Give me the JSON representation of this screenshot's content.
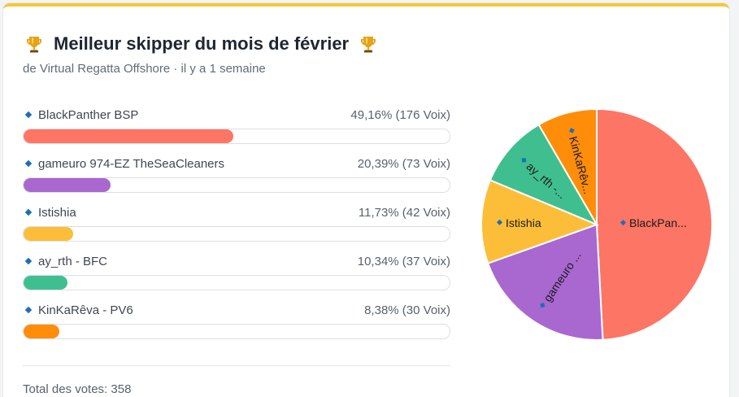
{
  "poll": {
    "title": "Meilleur skipper du mois de février",
    "subtitle": "de Virtual Regatta Offshore · il y a 1 semaine",
    "total": "Total des votes: 358",
    "title_icon": "trophy-icon",
    "accent_color": "#f6c736"
  },
  "options": [
    {
      "name": "BlackPanther BSP",
      "result": "49,16% (176 Voix)",
      "percent": 49.16,
      "votes": 176,
      "color": "#fd7564",
      "pie_label": "BlackPan..."
    },
    {
      "name": "gameuro 974-EZ TheSeaCleaners",
      "result": "20,39% (73 Voix)",
      "percent": 20.39,
      "votes": 73,
      "color": "#a967d0",
      "pie_label": "gameuro ..."
    },
    {
      "name": "Istishia",
      "result": "11,73% (42 Voix)",
      "percent": 11.73,
      "votes": 42,
      "color": "#fcbe38",
      "pie_label": "Istishia"
    },
    {
      "name": "ay_rth - BFC",
      "result": "10,34% (37 Voix)",
      "percent": 10.34,
      "votes": 37,
      "color": "#3fbf8f",
      "pie_label": "ay_rth -..."
    },
    {
      "name": "KinKaRêva - PV6",
      "result": "8,38% (30 Voix)",
      "percent": 8.38,
      "votes": 30,
      "color": "#ff8d0a",
      "pie_label": "KinKaRêv..."
    }
  ],
  "chart_data": {
    "type": "pie",
    "categories": [
      "BlackPanther BSP",
      "gameuro 974-EZ TheSeaCleaners",
      "Istishia",
      "ay_rth - BFC",
      "KinKaRêva - PV6"
    ],
    "values": [
      176,
      73,
      42,
      37,
      30
    ],
    "colors": [
      "#fd7564",
      "#a967d0",
      "#fcbe38",
      "#3fbf8f",
      "#ff8d0a"
    ]
  }
}
